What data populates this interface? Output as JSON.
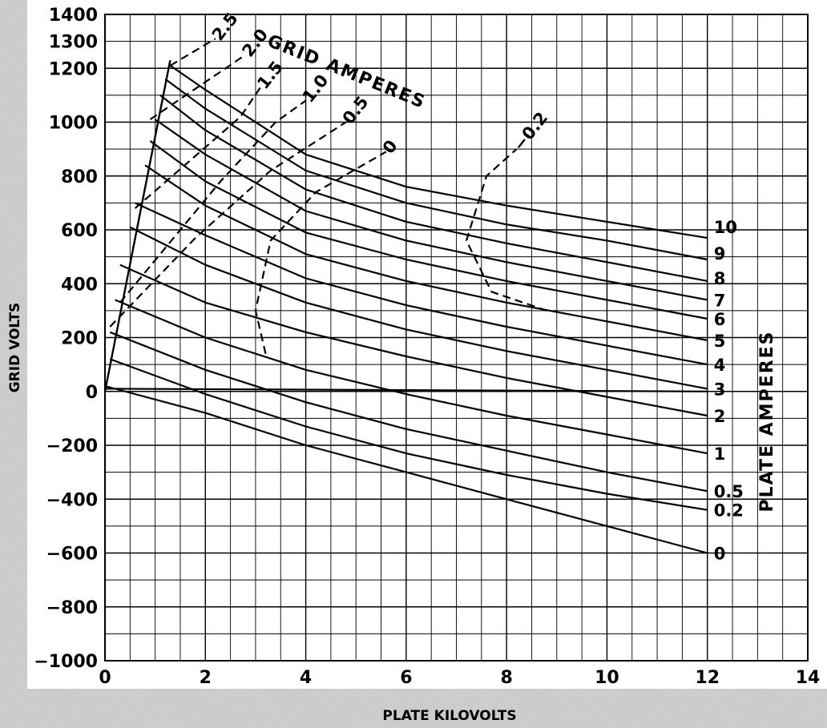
{
  "chart_data": {
    "type": "line",
    "title": "",
    "xlabel": "PLATE KILOVOLTS",
    "ylabel": "GRID VOLTS",
    "xlim": [
      0,
      14
    ],
    "ylim": [
      -1000,
      1400
    ],
    "grid": true,
    "x_ticks": [
      "0",
      "2",
      "4",
      "6",
      "8",
      "10",
      "12",
      "14"
    ],
    "y_ticks": [
      "1400",
      "1300",
      "1200",
      "1000",
      "800",
      "600",
      "400",
      "200",
      "0",
      "−200",
      "−400",
      "−600",
      "−800",
      "−1000"
    ],
    "plate_current_title": "PLATE AMPERES",
    "grid_current_title": "GRID AMPERES",
    "plate_current_series": [
      {
        "label": "10",
        "points": [
          [
            1.3,
            1210
          ],
          [
            2,
            1120
          ],
          [
            4,
            880
          ],
          [
            6,
            760
          ],
          [
            8,
            690
          ],
          [
            10,
            630
          ],
          [
            12,
            570
          ]
        ]
      },
      {
        "label": "9",
        "points": [
          [
            1.2,
            1160
          ],
          [
            2,
            1050
          ],
          [
            4,
            820
          ],
          [
            6,
            700
          ],
          [
            8,
            620
          ],
          [
            10,
            560
          ],
          [
            12,
            490
          ]
        ]
      },
      {
        "label": "8",
        "points": [
          [
            1.1,
            1100
          ],
          [
            2,
            970
          ],
          [
            4,
            750
          ],
          [
            6,
            630
          ],
          [
            8,
            550
          ],
          [
            10,
            480
          ],
          [
            12,
            410
          ]
        ]
      },
      {
        "label": "7",
        "points": [
          [
            1.0,
            1010
          ],
          [
            2,
            880
          ],
          [
            4,
            670
          ],
          [
            6,
            560
          ],
          [
            8,
            480
          ],
          [
            10,
            410
          ],
          [
            12,
            340
          ]
        ]
      },
      {
        "label": "6",
        "points": [
          [
            0.9,
            930
          ],
          [
            2,
            780
          ],
          [
            4,
            590
          ],
          [
            6,
            490
          ],
          [
            8,
            410
          ],
          [
            10,
            340
          ],
          [
            12,
            270
          ]
        ]
      },
      {
        "label": "5",
        "points": [
          [
            0.8,
            840
          ],
          [
            2,
            690
          ],
          [
            4,
            510
          ],
          [
            6,
            410
          ],
          [
            8,
            330
          ],
          [
            10,
            260
          ],
          [
            12,
            190
          ]
        ]
      },
      {
        "label": "4",
        "points": [
          [
            0.6,
            700
          ],
          [
            2,
            580
          ],
          [
            4,
            420
          ],
          [
            6,
            320
          ],
          [
            8,
            240
          ],
          [
            10,
            170
          ],
          [
            12,
            100
          ]
        ]
      },
      {
        "label": "3",
        "points": [
          [
            0.5,
            610
          ],
          [
            2,
            470
          ],
          [
            4,
            330
          ],
          [
            6,
            230
          ],
          [
            8,
            150
          ],
          [
            10,
            80
          ],
          [
            12,
            10
          ]
        ]
      },
      {
        "label": "2",
        "points": [
          [
            0.3,
            470
          ],
          [
            2,
            330
          ],
          [
            4,
            220
          ],
          [
            6,
            130
          ],
          [
            8,
            50
          ],
          [
            10,
            -20
          ],
          [
            12,
            -90
          ]
        ]
      },
      {
        "label": "1",
        "points": [
          [
            0.2,
            340
          ],
          [
            2,
            200
          ],
          [
            4,
            80
          ],
          [
            6,
            -10
          ],
          [
            8,
            -90
          ],
          [
            10,
            -160
          ],
          [
            12,
            -230
          ]
        ]
      },
      {
        "label": "0.5",
        "points": [
          [
            0.1,
            220
          ],
          [
            2,
            80
          ],
          [
            4,
            -40
          ],
          [
            6,
            -140
          ],
          [
            8,
            -220
          ],
          [
            10,
            -300
          ],
          [
            12,
            -370
          ]
        ]
      },
      {
        "label": "0.2",
        "points": [
          [
            0.1,
            120
          ],
          [
            2,
            -10
          ],
          [
            4,
            -130
          ],
          [
            6,
            -230
          ],
          [
            8,
            -310
          ],
          [
            10,
            -380
          ],
          [
            12,
            -440
          ]
        ]
      },
      {
        "label": "0",
        "points": [
          [
            0,
            20
          ],
          [
            2,
            -80
          ],
          [
            4,
            -200
          ],
          [
            6,
            -300
          ],
          [
            8,
            -400
          ],
          [
            10,
            -500
          ],
          [
            12,
            -600
          ]
        ]
      }
    ],
    "zero_line": {
      "points": [
        [
          0,
          10
        ],
        [
          12,
          0
        ]
      ]
    },
    "boundary_line": {
      "points": [
        [
          0,
          0
        ],
        [
          1.3,
          1230
        ]
      ]
    },
    "grid_current_series": [
      {
        "label": "2.5",
        "points": [
          [
            1.3,
            1210
          ],
          [
            2.2,
            1310
          ]
        ]
      },
      {
        "label": "2.0",
        "points": [
          [
            0.9,
            1010
          ],
          [
            2.8,
            1250
          ]
        ]
      },
      {
        "label": "1.5",
        "points": [
          [
            0.6,
            680
          ],
          [
            2.7,
            1020
          ],
          [
            3.1,
            1130
          ]
        ]
      },
      {
        "label": "1.0",
        "points": [
          [
            0.3,
            330
          ],
          [
            2.3,
            780
          ],
          [
            3.4,
            1000
          ],
          [
            4.0,
            1080
          ]
        ]
      },
      {
        "label": "0.5",
        "points": [
          [
            0.1,
            240
          ],
          [
            1.8,
            570
          ],
          [
            3.3,
            820
          ],
          [
            4.3,
            940
          ],
          [
            4.8,
            1000
          ]
        ]
      },
      {
        "label": "0",
        "points": [
          [
            3.2,
            140
          ],
          [
            3.0,
            300
          ],
          [
            3.3,
            560
          ],
          [
            4.2,
            740
          ],
          [
            5.6,
            890
          ]
        ]
      },
      {
        "label": "−0.2",
        "points": [
          [
            8.8,
            300
          ],
          [
            7.7,
            370
          ],
          [
            7.2,
            560
          ],
          [
            7.6,
            800
          ],
          [
            8.2,
            900
          ]
        ]
      }
    ]
  }
}
